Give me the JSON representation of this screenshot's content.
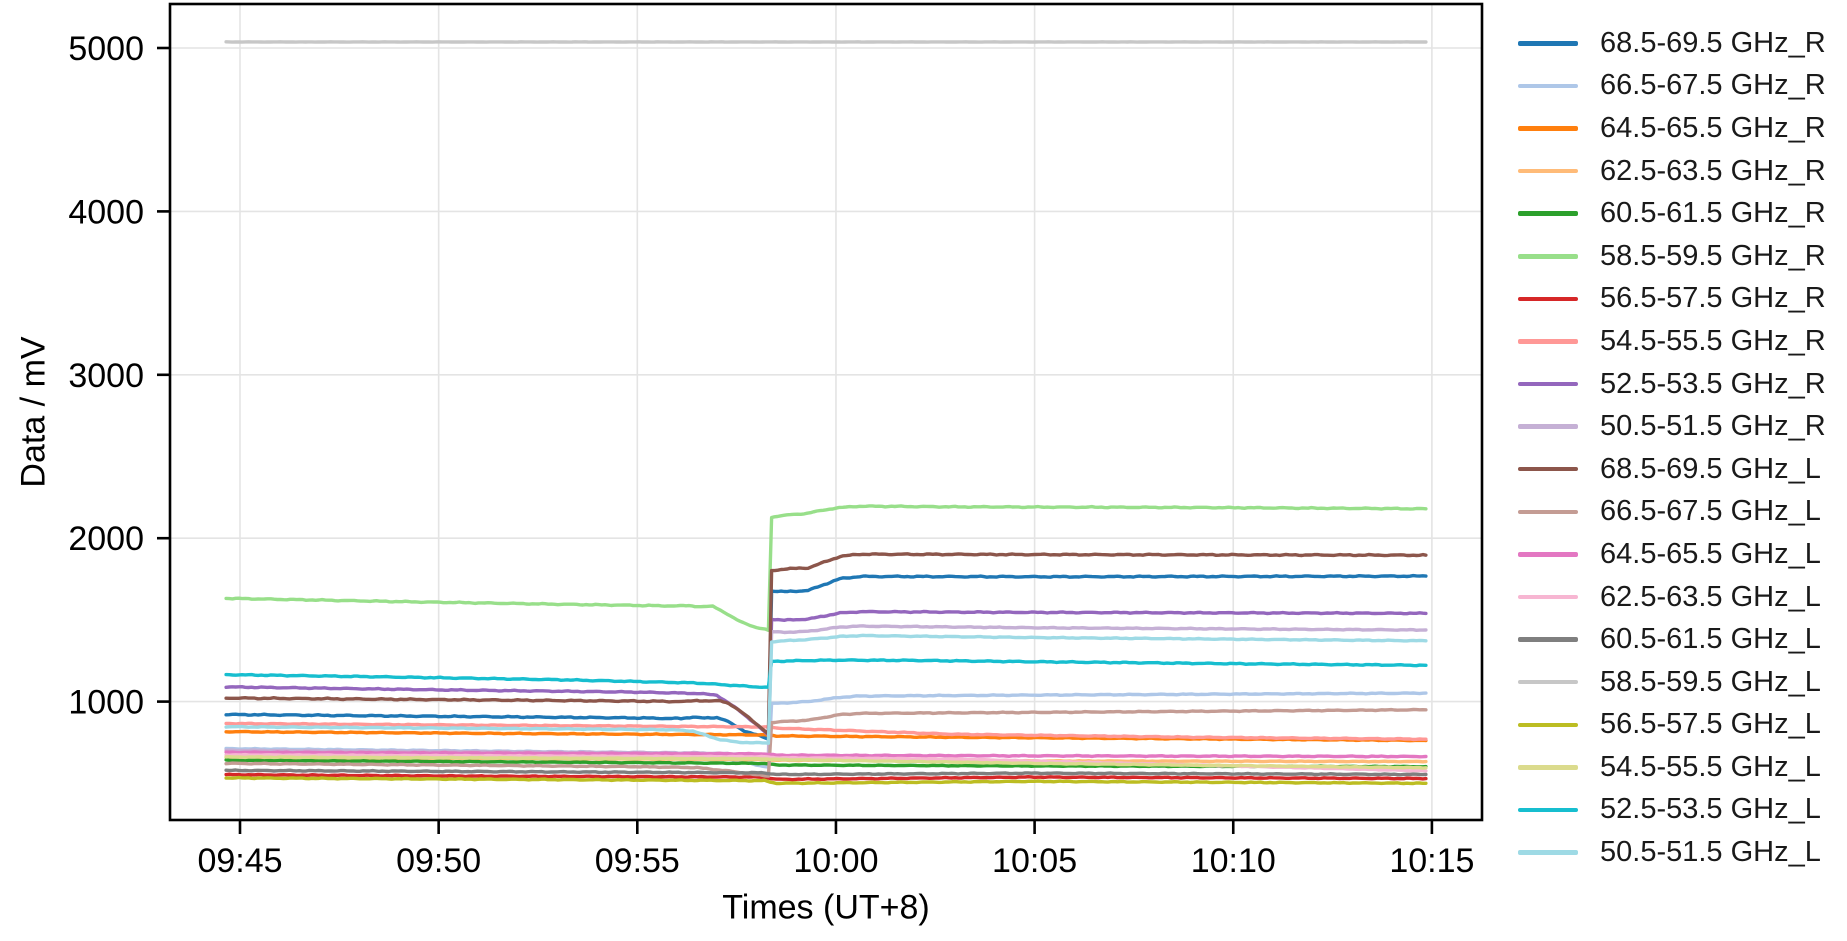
{
  "chart_data": {
    "type": "line",
    "title": "",
    "xlabel": "Times (UT+8)",
    "ylabel": "Data / mV",
    "y_unit": "mV",
    "grid": true,
    "legend_position": "right-outside",
    "x_tick_labels": [
      "09:45",
      "09:50",
      "09:55",
      "10:00",
      "10:05",
      "10:10",
      "10:15"
    ],
    "x_tick_minutes": [
      0,
      5,
      10,
      15,
      20,
      25,
      30
    ],
    "x_note": "minutes measured from 09:45; data spans 09:44.7 to 10:14.8",
    "y_tick_labels": [
      "1000",
      "2000",
      "3000",
      "4000",
      "5000"
    ],
    "y_tick_values": [
      1000,
      2000,
      3000,
      4000,
      5000
    ],
    "y_range": [
      270,
      5245
    ],
    "event_note": "dip then step-up transition at ~09:58.3",
    "series": [
      {
        "name": "68.5-69.5 GHz_R",
        "color": "#1f77b4",
        "noise_amp": 4,
        "points": [
          [
            -0.35,
            921
          ],
          [
            5,
            910
          ],
          [
            10,
            900
          ],
          [
            11.1,
            896
          ],
          [
            11.4,
            906
          ],
          [
            11.7,
            898
          ],
          [
            12.0,
            903
          ],
          [
            12.2,
            888
          ],
          [
            12.7,
            820
          ],
          [
            13.3,
            772
          ],
          [
            13.38,
            1678
          ],
          [
            13.7,
            1672
          ],
          [
            14.3,
            1680
          ],
          [
            15.1,
            1752
          ],
          [
            15.6,
            1766
          ],
          [
            20,
            1764
          ],
          [
            29.85,
            1768
          ]
        ]
      },
      {
        "name": "66.5-67.5 GHz_R",
        "color": "#aec7e8",
        "noise_amp": 3,
        "points": [
          [
            -0.35,
            712
          ],
          [
            5,
            700
          ],
          [
            10,
            688
          ],
          [
            11.5,
            680
          ],
          [
            12.3,
            652
          ],
          [
            13.0,
            612
          ],
          [
            13.3,
            600
          ],
          [
            13.38,
            988
          ],
          [
            13.7,
            992
          ],
          [
            14.3,
            1000
          ],
          [
            15.1,
            1026
          ],
          [
            15.6,
            1034
          ],
          [
            20,
            1040
          ],
          [
            25,
            1046
          ],
          [
            29.85,
            1052
          ]
        ]
      },
      {
        "name": "64.5-65.5 GHz_R",
        "color": "#ff7f0e",
        "noise_amp": 3,
        "points": [
          [
            -0.35,
            816
          ],
          [
            6,
            806
          ],
          [
            13.2,
            796
          ],
          [
            13.5,
            790
          ],
          [
            18,
            782
          ],
          [
            24,
            772
          ],
          [
            29.85,
            762
          ]
        ]
      },
      {
        "name": "62.5-63.5 GHz_R",
        "color": "#ffbb78",
        "noise_amp": 2.5,
        "points": [
          [
            -0.35,
            658
          ],
          [
            6,
            652
          ],
          [
            13.2,
            645
          ],
          [
            13.5,
            641
          ],
          [
            20,
            637
          ],
          [
            29.85,
            633
          ]
        ]
      },
      {
        "name": "60.5-61.5 GHz_R",
        "color": "#2ca02c",
        "noise_amp": 2.5,
        "points": [
          [
            -0.35,
            641
          ],
          [
            6,
            632
          ],
          [
            13.2,
            622
          ],
          [
            13.5,
            612
          ],
          [
            20,
            606
          ],
          [
            29.85,
            602
          ]
        ]
      },
      {
        "name": "58.5-59.5 GHz_R",
        "color": "#98df8a",
        "noise_amp": 3.5,
        "points": [
          [
            -0.35,
            1632
          ],
          [
            4,
            1612
          ],
          [
            8,
            1596
          ],
          [
            11.0,
            1585
          ],
          [
            11.3,
            1588
          ],
          [
            11.6,
            1580
          ],
          [
            11.9,
            1583
          ],
          [
            12.1,
            1560
          ],
          [
            12.5,
            1500
          ],
          [
            13.0,
            1452
          ],
          [
            13.3,
            1437
          ],
          [
            13.38,
            2128
          ],
          [
            13.6,
            2138
          ],
          [
            14.2,
            2150
          ],
          [
            15.0,
            2185
          ],
          [
            15.6,
            2196
          ],
          [
            18,
            2192
          ],
          [
            24,
            2188
          ],
          [
            29.85,
            2180
          ]
        ]
      },
      {
        "name": "56.5-57.5 GHz_R",
        "color": "#d62728",
        "noise_amp": 3,
        "points": [
          [
            -0.35,
            553
          ],
          [
            6,
            544
          ],
          [
            13.2,
            538
          ],
          [
            13.5,
            524
          ],
          [
            20,
            538
          ],
          [
            29.85,
            529
          ]
        ]
      },
      {
        "name": "54.5-55.5 GHz_R",
        "color": "#ff9896",
        "noise_amp": 3,
        "points": [
          [
            -0.35,
            866
          ],
          [
            6,
            856
          ],
          [
            13.2,
            845
          ],
          [
            13.5,
            838
          ],
          [
            18,
            800
          ],
          [
            24,
            782
          ],
          [
            29.85,
            770
          ]
        ]
      },
      {
        "name": "52.5-53.5 GHz_R",
        "color": "#9467bd",
        "noise_amp": 3.5,
        "points": [
          [
            -0.35,
            1090
          ],
          [
            5,
            1072
          ],
          [
            10,
            1058
          ],
          [
            11.5,
            1050
          ],
          [
            12.0,
            1040
          ],
          [
            12.6,
            940
          ],
          [
            13.1,
            838
          ],
          [
            13.3,
            795
          ],
          [
            13.38,
            1505
          ],
          [
            13.7,
            1498
          ],
          [
            14.3,
            1505
          ],
          [
            15.1,
            1542
          ],
          [
            15.6,
            1550
          ],
          [
            20,
            1546
          ],
          [
            29.85,
            1540
          ]
        ]
      },
      {
        "name": "50.5-51.5 GHz_R",
        "color": "#c5b0d5",
        "noise_amp": 3,
        "points": [
          [
            -0.35,
            702
          ],
          [
            6,
            694
          ],
          [
            11.5,
            686
          ],
          [
            12.5,
            680
          ],
          [
            13.3,
            676
          ],
          [
            13.38,
            1428
          ],
          [
            13.7,
            1424
          ],
          [
            14.3,
            1430
          ],
          [
            15.1,
            1456
          ],
          [
            15.6,
            1462
          ],
          [
            20,
            1452
          ],
          [
            29.85,
            1438
          ]
        ]
      },
      {
        "name": "68.5-69.5 GHz_L",
        "color": "#8c564b",
        "noise_amp": 4,
        "points": [
          [
            -0.35,
            1022
          ],
          [
            5,
            1012
          ],
          [
            10,
            1003
          ],
          [
            11.2,
            1000
          ],
          [
            11.5,
            1008
          ],
          [
            11.8,
            1002
          ],
          [
            12.1,
            1006
          ],
          [
            12.3,
            990
          ],
          [
            12.8,
            905
          ],
          [
            13.3,
            800
          ],
          [
            13.38,
            1800
          ],
          [
            13.7,
            1812
          ],
          [
            14.3,
            1818
          ],
          [
            15.1,
            1888
          ],
          [
            15.6,
            1902
          ],
          [
            20,
            1900
          ],
          [
            29.85,
            1896
          ]
        ]
      },
      {
        "name": "66.5-67.5 GHz_L",
        "color": "#c49c94",
        "noise_amp": 3,
        "points": [
          [
            -0.35,
            622
          ],
          [
            5,
            612
          ],
          [
            10,
            602
          ],
          [
            11.5,
            596
          ],
          [
            12.3,
            575
          ],
          [
            13.0,
            552
          ],
          [
            13.3,
            545
          ],
          [
            13.38,
            872
          ],
          [
            13.7,
            878
          ],
          [
            14.3,
            886
          ],
          [
            15.1,
            920
          ],
          [
            15.6,
            928
          ],
          [
            20,
            934
          ],
          [
            25,
            942
          ],
          [
            29.85,
            950
          ]
        ]
      },
      {
        "name": "64.5-65.5 GHz_L",
        "color": "#e377c2",
        "noise_amp": 3,
        "points": [
          [
            -0.35,
            690
          ],
          [
            13.2,
            680
          ],
          [
            13.5,
            672
          ],
          [
            20,
            668
          ],
          [
            29.85,
            664
          ]
        ]
      },
      {
        "name": "62.5-63.5 GHz_L",
        "color": "#f7b6d2",
        "noise_amp": 2.5,
        "points": [
          [
            -0.35,
            674
          ],
          [
            13.2,
            662
          ],
          [
            13.5,
            656
          ],
          [
            18,
            648
          ],
          [
            24,
            612
          ],
          [
            29.85,
            576
          ]
        ]
      },
      {
        "name": "60.5-61.5 GHz_L",
        "color": "#7f7f7f",
        "noise_amp": 3,
        "points": [
          [
            -0.35,
            579
          ],
          [
            13.2,
            564
          ],
          [
            13.5,
            554
          ],
          [
            20,
            562
          ],
          [
            29.85,
            554
          ]
        ]
      },
      {
        "name": "58.5-59.5 GHz_L",
        "color": "#c7c7c7",
        "noise_amp": 1,
        "points": [
          [
            -0.35,
            5037
          ],
          [
            29.85,
            5037
          ]
        ]
      },
      {
        "name": "56.5-57.5 GHz_L",
        "color": "#bcbd22",
        "noise_amp": 3,
        "points": [
          [
            -0.35,
            533
          ],
          [
            13.2,
            516
          ],
          [
            13.5,
            500
          ],
          [
            20,
            512
          ],
          [
            29.85,
            500
          ]
        ]
      },
      {
        "name": "54.5-55.5 GHz_L",
        "color": "#dbdb8d",
        "noise_amp": 2.5,
        "points": [
          [
            -0.35,
            661
          ],
          [
            13.2,
            650
          ],
          [
            13.5,
            646
          ],
          [
            20,
            622
          ],
          [
            29.85,
            595
          ]
        ]
      },
      {
        "name": "52.5-53.5 GHz_L",
        "color": "#17becf",
        "noise_amp": 3.5,
        "points": [
          [
            -0.35,
            1165
          ],
          [
            4,
            1150
          ],
          [
            8,
            1134
          ],
          [
            11.5,
            1114
          ],
          [
            12.5,
            1098
          ],
          [
            13.3,
            1086
          ],
          [
            13.38,
            1246
          ],
          [
            14.0,
            1250
          ],
          [
            15.0,
            1254
          ],
          [
            17,
            1252
          ],
          [
            20,
            1244
          ],
          [
            25,
            1232
          ],
          [
            29.85,
            1222
          ]
        ]
      },
      {
        "name": "50.5-51.5 GHz_L",
        "color": "#9edae5",
        "noise_amp": 3,
        "points": [
          [
            -0.35,
            846
          ],
          [
            5,
            838
          ],
          [
            10.8,
            828
          ],
          [
            11.4,
            820
          ],
          [
            12.0,
            772
          ],
          [
            12.5,
            752
          ],
          [
            13.0,
            748
          ],
          [
            13.3,
            746
          ],
          [
            13.38,
            1366
          ],
          [
            13.7,
            1372
          ],
          [
            14.3,
            1380
          ],
          [
            15.1,
            1398
          ],
          [
            15.6,
            1404
          ],
          [
            20,
            1392
          ],
          [
            25,
            1382
          ],
          [
            29.85,
            1372
          ]
        ]
      }
    ]
  },
  "style_colors": {
    "frame": "#000000",
    "gridline": "#e4e4e4",
    "tick_text": "#000000",
    "legend_text": "#1a1a1a"
  }
}
